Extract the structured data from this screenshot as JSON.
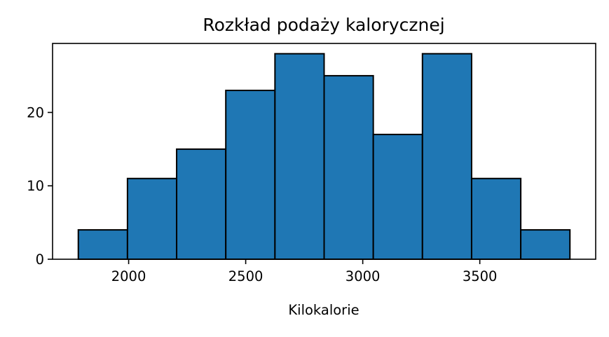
{
  "chart_data": {
    "type": "bar",
    "subtype": "histogram",
    "title": "Rozkład podaży kalorycznej",
    "xlabel": "Kilokalorie",
    "ylabel": "",
    "bin_edges": [
      1785,
      1995,
      2205,
      2415,
      2625,
      2835,
      3045,
      3255,
      3465,
      3675,
      3885
    ],
    "values": [
      4,
      11,
      15,
      23,
      28,
      25,
      17,
      28,
      11,
      4
    ],
    "xlim": [
      1675,
      3995
    ],
    "ylim": [
      0,
      29.4
    ],
    "xticks": [
      2000,
      2500,
      3000,
      3500
    ],
    "yticks": [
      0,
      10,
      20
    ],
    "grid": false,
    "legend": "none",
    "bar_color": "#1f77b4",
    "edge_color": "#000000"
  }
}
